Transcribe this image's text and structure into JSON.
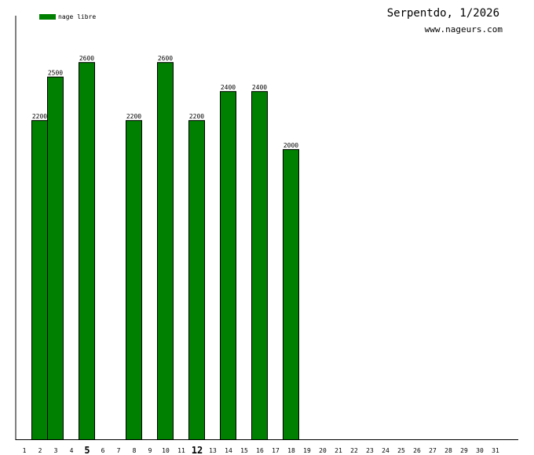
{
  "chart_data": {
    "type": "bar",
    "title": "Serpentdo, 1/2026",
    "subtitle": "www.nageurs.com",
    "legend": [
      {
        "label": "nage libre",
        "color": "#008000"
      }
    ],
    "legend_placement": "top-left",
    "x": [
      1,
      2,
      3,
      4,
      5,
      6,
      7,
      8,
      9,
      10,
      11,
      12,
      13,
      14,
      15,
      16,
      17,
      18,
      19,
      20,
      21,
      22,
      23,
      24,
      25,
      26,
      27,
      28,
      29,
      30,
      31
    ],
    "highlighted_ticks": [
      5,
      12
    ],
    "series": [
      {
        "name": "nage libre",
        "color": "#008000",
        "values": [
          null,
          2200,
          2500,
          null,
          2600,
          null,
          null,
          2200,
          null,
          2600,
          null,
          2200,
          null,
          2400,
          null,
          2400,
          null,
          2000,
          null,
          null,
          null,
          null,
          null,
          null,
          null,
          null,
          null,
          null,
          null,
          null,
          null
        ]
      }
    ],
    "ylim": [
      0,
      2920
    ],
    "grid": false
  }
}
